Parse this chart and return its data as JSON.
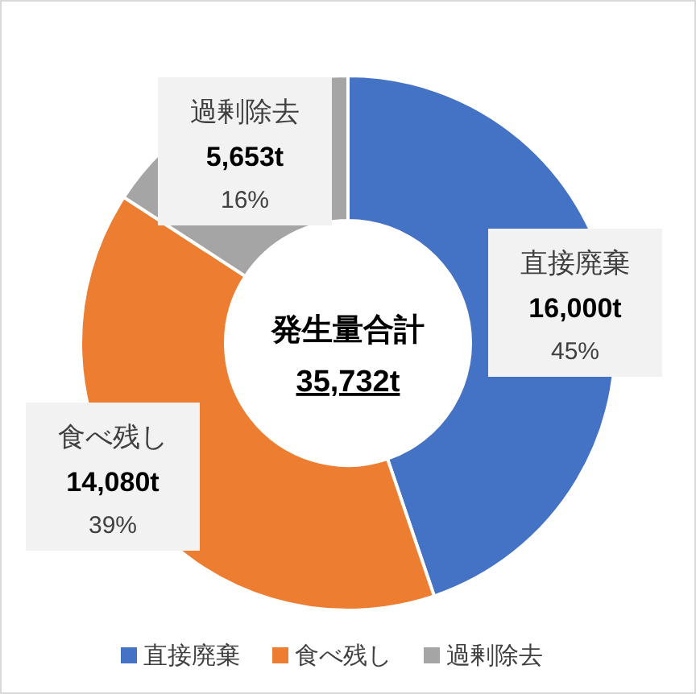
{
  "chart_data": {
    "type": "donut",
    "title": "発生量合計",
    "subtitle": "35,732t",
    "categories": [
      "直接廃棄",
      "食べ残し",
      "過剰除去"
    ],
    "values": [
      16000,
      14080,
      5653
    ],
    "colors": [
      "#4472c4",
      "#ed7d31",
      "#a5a5a5"
    ],
    "value_labels": [
      "16,000t",
      "14,080t",
      "5,653t"
    ],
    "annotations": [
      "45%",
      "39%",
      "16%"
    ],
    "legend": "bottom"
  }
}
